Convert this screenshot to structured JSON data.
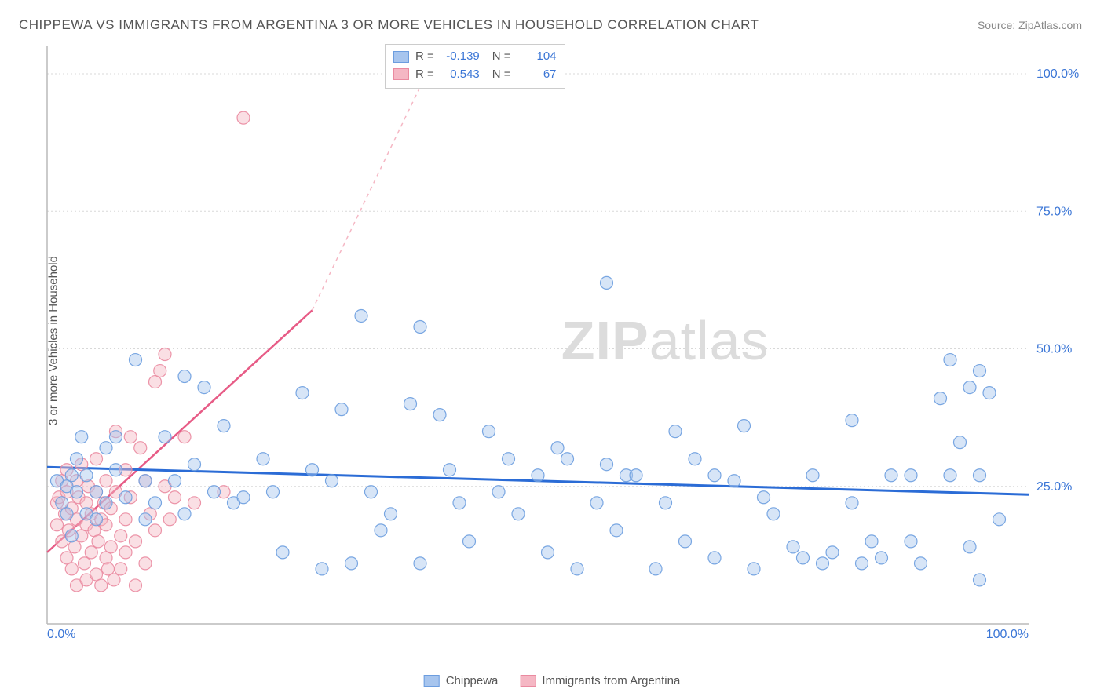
{
  "title": "CHIPPEWA VS IMMIGRANTS FROM ARGENTINA 3 OR MORE VEHICLES IN HOUSEHOLD CORRELATION CHART",
  "source": "Source: ZipAtlas.com",
  "ylabel": "3 or more Vehicles in Household",
  "watermark_bold": "ZIP",
  "watermark_light": "atlas",
  "chart": {
    "type": "scatter",
    "background_color": "#ffffff",
    "grid_color": "#d8d8d8",
    "axis_color": "#bababa",
    "xlim": [
      0,
      100
    ],
    "ylim": [
      0,
      105
    ],
    "xticks": [
      0,
      100
    ],
    "xtick_labels": [
      "0.0%",
      "100.0%"
    ],
    "yticks": [
      25,
      50,
      75,
      100
    ],
    "ytick_labels": [
      "25.0%",
      "50.0%",
      "75.0%",
      "100.0%"
    ],
    "tick_color": "#3b76d6",
    "tick_fontsize": 16,
    "marker_radius": 8,
    "marker_opacity": 0.45,
    "series": [
      {
        "name": "Chippewa",
        "fill_color": "#a7c5ee",
        "stroke_color": "#6c9ddf",
        "R": "-0.139",
        "N": "104",
        "trend": {
          "x1": 0,
          "y1": 28.5,
          "x2": 100,
          "y2": 23.5,
          "color": "#2b6cd6",
          "width": 3,
          "dash": "none"
        },
        "points": [
          [
            1,
            26
          ],
          [
            1.5,
            22
          ],
          [
            2,
            25
          ],
          [
            2,
            20
          ],
          [
            2.5,
            27
          ],
          [
            2.5,
            16
          ],
          [
            3,
            30
          ],
          [
            3,
            24
          ],
          [
            3.5,
            34
          ],
          [
            4,
            20
          ],
          [
            4,
            27
          ],
          [
            5,
            19
          ],
          [
            5,
            24
          ],
          [
            6,
            32
          ],
          [
            6,
            22
          ],
          [
            7,
            28
          ],
          [
            7,
            34
          ],
          [
            8,
            23
          ],
          [
            9,
            48
          ],
          [
            10,
            26
          ],
          [
            10,
            19
          ],
          [
            11,
            22
          ],
          [
            12,
            34
          ],
          [
            13,
            26
          ],
          [
            14,
            45
          ],
          [
            14,
            20
          ],
          [
            15,
            29
          ],
          [
            16,
            43
          ],
          [
            17,
            24
          ],
          [
            18,
            36
          ],
          [
            19,
            22
          ],
          [
            20,
            23
          ],
          [
            22,
            30
          ],
          [
            23,
            24
          ],
          [
            24,
            13
          ],
          [
            26,
            42
          ],
          [
            27,
            28
          ],
          [
            28,
            10
          ],
          [
            29,
            26
          ],
          [
            30,
            39
          ],
          [
            31,
            11
          ],
          [
            32,
            56
          ],
          [
            33,
            24
          ],
          [
            34,
            17
          ],
          [
            35,
            20
          ],
          [
            37,
            40
          ],
          [
            38,
            54
          ],
          [
            38,
            11
          ],
          [
            40,
            38
          ],
          [
            41,
            28
          ],
          [
            42,
            22
          ],
          [
            43,
            15
          ],
          [
            45,
            35
          ],
          [
            46,
            24
          ],
          [
            47,
            30
          ],
          [
            48,
            20
          ],
          [
            50,
            27
          ],
          [
            51,
            13
          ],
          [
            52,
            32
          ],
          [
            53,
            30
          ],
          [
            54,
            10
          ],
          [
            56,
            22
          ],
          [
            57,
            62
          ],
          [
            57,
            29
          ],
          [
            58,
            17
          ],
          [
            59,
            27
          ],
          [
            60,
            27
          ],
          [
            62,
            10
          ],
          [
            63,
            22
          ],
          [
            64,
            35
          ],
          [
            65,
            15
          ],
          [
            66,
            30
          ],
          [
            68,
            12
          ],
          [
            68,
            27
          ],
          [
            70,
            26
          ],
          [
            71,
            36
          ],
          [
            72,
            10
          ],
          [
            73,
            23
          ],
          [
            74,
            20
          ],
          [
            76,
            14
          ],
          [
            77,
            12
          ],
          [
            78,
            27
          ],
          [
            79,
            11
          ],
          [
            80,
            13
          ],
          [
            82,
            22
          ],
          [
            82,
            37
          ],
          [
            83,
            11
          ],
          [
            84,
            15
          ],
          [
            85,
            12
          ],
          [
            86,
            27
          ],
          [
            88,
            15
          ],
          [
            88,
            27
          ],
          [
            89,
            11
          ],
          [
            91,
            41
          ],
          [
            92,
            27
          ],
          [
            92,
            48
          ],
          [
            93,
            33
          ],
          [
            94,
            43
          ],
          [
            94,
            14
          ],
          [
            95,
            27
          ],
          [
            95,
            46
          ],
          [
            95,
            8
          ],
          [
            96,
            42
          ],
          [
            97,
            19
          ]
        ]
      },
      {
        "name": "Immigrants from Argentina",
        "fill_color": "#f5b7c4",
        "stroke_color": "#ea8aa0",
        "R": "0.543",
        "N": "67",
        "trend_solid": {
          "x1": 0,
          "y1": 13,
          "x2": 27,
          "y2": 57,
          "color": "#e75b86",
          "width": 2.5
        },
        "trend_dash": {
          "x1": 27,
          "y1": 57,
          "x2": 40,
          "y2": 105,
          "color": "#f5b7c4",
          "width": 1.5
        },
        "points": [
          [
            1,
            22
          ],
          [
            1,
            18
          ],
          [
            1.2,
            23
          ],
          [
            1.5,
            15
          ],
          [
            1.5,
            26
          ],
          [
            1.8,
            20
          ],
          [
            2,
            12
          ],
          [
            2,
            28
          ],
          [
            2,
            24
          ],
          [
            2.2,
            17
          ],
          [
            2.5,
            21
          ],
          [
            2.5,
            10
          ],
          [
            2.8,
            14
          ],
          [
            3,
            26
          ],
          [
            3,
            19
          ],
          [
            3,
            7
          ],
          [
            3.2,
            23
          ],
          [
            3.5,
            16
          ],
          [
            3.5,
            29
          ],
          [
            3.8,
            11
          ],
          [
            4,
            22
          ],
          [
            4,
            18
          ],
          [
            4,
            8
          ],
          [
            4.2,
            25
          ],
          [
            4.5,
            13
          ],
          [
            4.5,
            20
          ],
          [
            4.8,
            17
          ],
          [
            5,
            24
          ],
          [
            5,
            30
          ],
          [
            5,
            9
          ],
          [
            5.2,
            15
          ],
          [
            5.5,
            19
          ],
          [
            5.5,
            7
          ],
          [
            5.8,
            22
          ],
          [
            6,
            12
          ],
          [
            6,
            26
          ],
          [
            6,
            18
          ],
          [
            6.2,
            10
          ],
          [
            6.5,
            21
          ],
          [
            6.5,
            14
          ],
          [
            6.8,
            8
          ],
          [
            7,
            24
          ],
          [
            7,
            35
          ],
          [
            7.5,
            16
          ],
          [
            7.5,
            10
          ],
          [
            8,
            28
          ],
          [
            8,
            19
          ],
          [
            8,
            13
          ],
          [
            8.5,
            34
          ],
          [
            8.5,
            23
          ],
          [
            9,
            15
          ],
          [
            9,
            7
          ],
          [
            9.5,
            32
          ],
          [
            10,
            26
          ],
          [
            10,
            11
          ],
          [
            10.5,
            20
          ],
          [
            11,
            44
          ],
          [
            11,
            17
          ],
          [
            11.5,
            46
          ],
          [
            12,
            25
          ],
          [
            12,
            49
          ],
          [
            12.5,
            19
          ],
          [
            13,
            23
          ],
          [
            14,
            34
          ],
          [
            15,
            22
          ],
          [
            18,
            24
          ],
          [
            20,
            92
          ]
        ]
      }
    ]
  },
  "stats_labels": {
    "R": "R =",
    "N": "N ="
  },
  "legend": {
    "series1": "Chippewa",
    "series2": "Immigrants from Argentina"
  }
}
